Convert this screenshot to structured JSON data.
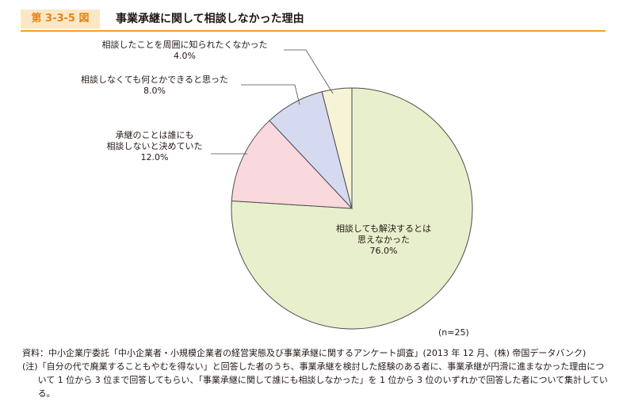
{
  "figure": {
    "number": "第 3-3-5 図",
    "title": "事業承継に関して相談しなかった理由"
  },
  "chart_data": {
    "type": "pie",
    "slices": [
      {
        "label": "相談しても解決するとは思えなかった",
        "label_lines": [
          "相談しても解決するとは",
          "思えなかった"
        ],
        "value": 76.0,
        "value_label": "76.0%",
        "color": "#e8efcc"
      },
      {
        "label": "承継のことは誰にも相談しないと決めていた",
        "label_lines": [
          "承継のことは誰にも",
          "相談しないと決めていた"
        ],
        "value": 12.0,
        "value_label": "12.0%",
        "color": "#f9d9dd"
      },
      {
        "label": "相談しなくても何とかできると思った",
        "label_lines": [
          "相談しなくても何とかできると思った"
        ],
        "value": 8.0,
        "value_label": "8.0%",
        "color": "#d6daf0"
      },
      {
        "label": "相談したことを周囲に知られたくなかった",
        "label_lines": [
          "相談したことを周囲に知られたくなかった"
        ],
        "value": 4.0,
        "value_label": "4.0%",
        "color": "#f7f3d6"
      }
    ],
    "n_label": "(n=25)",
    "start": "12 o'clock",
    "direction": "clockwise"
  },
  "notes": {
    "source_tag": "資料：",
    "source": "中小企業庁委託「中小企業者・小規模企業者の経営実態及び事業承継に関するアンケート調査」(2013 年 12 月、(株) 帝国データバンク)",
    "note_tag": "(注)",
    "note": "「自分の代で廃業することもやむを得ない」と回答した者のうち、事業承継を検討した経験のある者に、事業承継が円滑に進まなかった理由について 1 位から 3 位まで回答してもらい、「事業承継に関して誰にも相談しなかった」を 1 位から 3 位のいずれかで回答した者について集計している。"
  }
}
